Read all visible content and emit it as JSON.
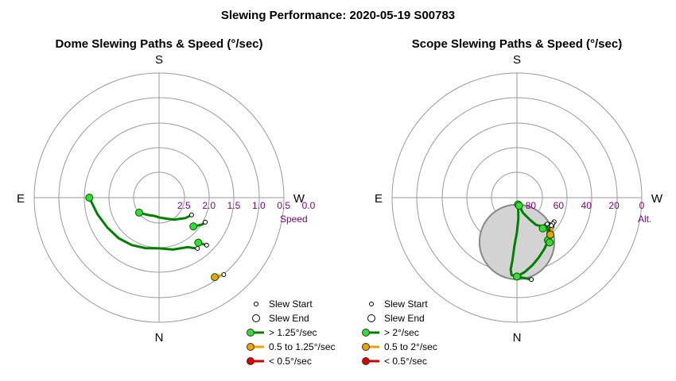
{
  "title": "Slewing Performance: 2020-05-19 S00783",
  "colors": {
    "fast": "#008000",
    "fast_marker": "#33dd33",
    "medium": "#f0a000",
    "medium_marker": "#f0a000",
    "slow": "#cc0000",
    "slow_marker": "#dd0000",
    "grid": "#999999",
    "scale": "#800080",
    "zenith_fill": "#d3d3d3",
    "zenith_stroke": "#888888"
  },
  "chart_data": [
    {
      "type": "scatter",
      "projection": "polar",
      "title": "Dome Slewing Paths & Speed (°/sec)",
      "directions": {
        "top": "S",
        "bottom": "N",
        "left": "E",
        "right": "W"
      },
      "radial_axis": {
        "label": "Speed",
        "reversed": true,
        "range": [
          3.0,
          0.0
        ],
        "ticks": [
          2.5,
          2.0,
          1.5,
          1.0,
          0.5,
          0.0
        ],
        "tick_labels": [
          "2.5",
          "2.0",
          "1.5",
          "1.0",
          "0.5",
          "0.0"
        ]
      },
      "legend": {
        "position": "bottom-right",
        "entries": [
          "Slew Start",
          "Slew End",
          "> 1.25°/sec",
          "0.5 to 1.25°/sec",
          "< 0.5°/sec"
        ]
      },
      "slews": [
        {
          "speed_class": "fast",
          "points": [
            [
              270,
              1.6
            ],
            [
              255,
              1.72
            ],
            [
              240,
              1.8
            ],
            [
              225,
              1.85
            ],
            [
              210,
              1.9
            ],
            [
              195,
              1.95
            ],
            [
              180,
              1.98
            ],
            [
              165,
              1.92
            ],
            [
              150,
              1.85
            ],
            [
              143,
              1.72
            ]
          ]
        },
        {
          "speed_class": "fast",
          "points": [
            [
              233,
              2.5
            ],
            [
              215,
              2.58
            ],
            [
              195,
              2.62
            ],
            [
              178,
              2.6
            ],
            [
              160,
              2.55
            ],
            [
              145,
              2.46
            ],
            [
              135,
              2.4
            ],
            [
              128,
              2.33
            ],
            [
              118,
              2.26
            ]
          ]
        },
        {
          "speed_class": "fast",
          "points": [
            [
              139,
              1.8
            ],
            [
              135,
              1.65
            ]
          ]
        },
        {
          "speed_class": "fast",
          "points": [
            [
              130,
              2.1
            ],
            [
              122,
              1.98
            ],
            [
              118,
              1.95
            ]
          ]
        },
        {
          "speed_class": "medium",
          "points": [
            [
              145,
              1.05
            ],
            [
              140,
              0.98
            ]
          ]
        }
      ]
    },
    {
      "type": "scatter",
      "projection": "polar",
      "title": "Scope Slewing Paths & Speed (°/sec)",
      "directions": {
        "top": "S",
        "bottom": "N",
        "left": "E",
        "right": "W"
      },
      "radial_axis": {
        "label": "Alt.",
        "range": [
          90,
          0
        ],
        "ticks": [
          80,
          60,
          40,
          20,
          0
        ],
        "tick_labels": [
          "80",
          "60",
          "40",
          "20",
          "0"
        ]
      },
      "zenith_exclusion": {
        "center_altitude": 58,
        "azimuth": 0,
        "radius_deg": 27
      },
      "legend": {
        "position": "bottom-center",
        "entries": [
          "Slew Start",
          "Slew End",
          "> 2°/sec",
          "0.5 to 2°/sec",
          "< 0.5°/sec"
        ]
      },
      "slews": [
        {
          "speed_class": "fast",
          "points": [
            [
              170,
              85
            ],
            [
              176,
              75
            ],
            [
              180,
              65
            ],
            [
              183,
              55
            ],
            [
              184,
              45
            ],
            [
              185,
              38
            ],
            [
              184,
              34
            ],
            [
              180,
              33
            ],
            [
              176,
              32
            ],
            [
              170,
              30
            ]
          ]
        },
        {
          "speed_class": "fast",
          "points": [
            [
              180,
              33
            ],
            [
              174,
              36
            ],
            [
              167,
              40
            ],
            [
              160,
              44
            ],
            [
              152,
              48
            ],
            [
              143,
              52
            ],
            [
              133,
              56
            ],
            [
              123,
              58
            ]
          ]
        },
        {
          "speed_class": "fast",
          "points": [
            [
              165,
              84
            ],
            [
              158,
              78
            ],
            [
              150,
              72
            ],
            [
              145,
              66
            ],
            [
              138,
              62
            ],
            [
              133,
              62
            ],
            [
              128,
              60
            ],
            [
              126,
              58
            ]
          ]
        },
        {
          "speed_class": "fast",
          "points": [
            [
              144,
              52
            ],
            [
              141,
              55
            ],
            [
              136,
              58
            ],
            [
              131,
              61
            ]
          ]
        },
        {
          "speed_class": "fast",
          "points": [
            [
              144,
              50
            ],
            [
              141,
              52
            ],
            [
              137,
              56
            ],
            [
              133,
              58
            ]
          ]
        },
        {
          "speed_class": "fast",
          "points": [
            [
              140,
              61
            ],
            [
              137,
              60
            ],
            [
              134,
              58
            ],
            [
              130,
              57
            ]
          ]
        },
        {
          "speed_class": "medium",
          "points": [
            [
              138,
              54
            ],
            [
              134,
              55
            ],
            [
              131,
              57
            ],
            [
              129,
              58
            ]
          ]
        }
      ]
    }
  ]
}
